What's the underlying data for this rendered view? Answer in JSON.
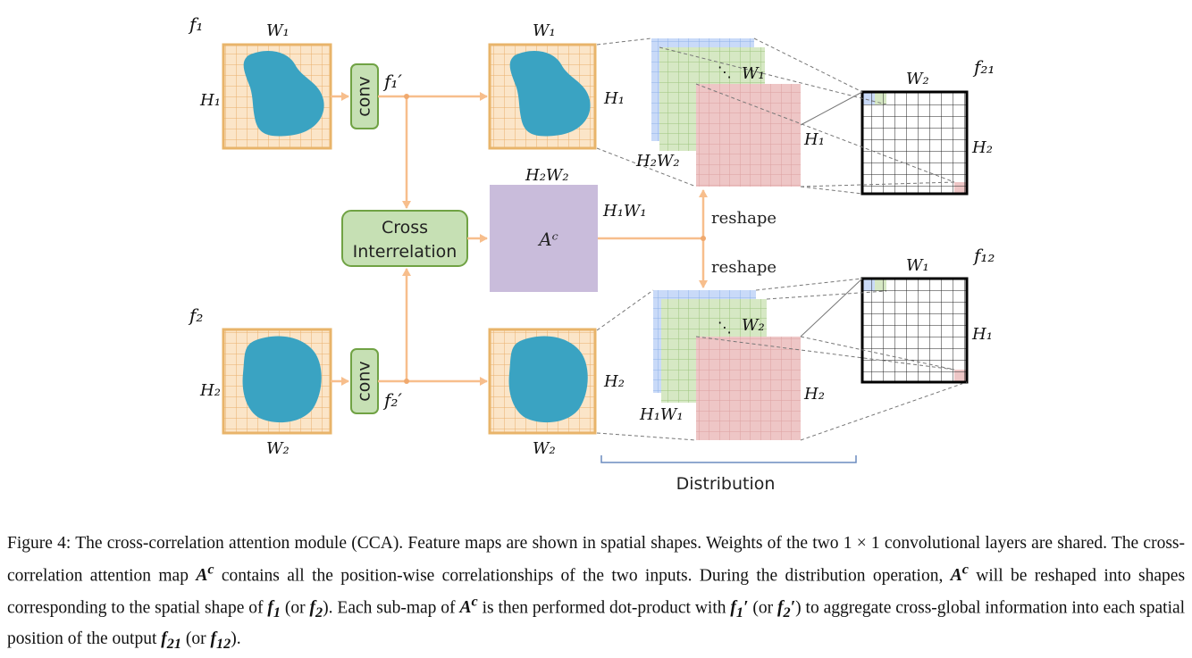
{
  "figure": {
    "f1_label": "f₁",
    "f2_label": "f₂",
    "f1p_label": "f₁′",
    "f2p_label": "f₂′",
    "f21_label": "f₂₁",
    "f12_label": "f₁₂",
    "W1": "W₁",
    "W2": "W₂",
    "H1": "H₁",
    "H2": "H₂",
    "H2W2": "H₂W₂",
    "H1W1": "H₁W₁",
    "conv_label": "conv",
    "cross_line1": "Cross",
    "cross_line2": "Interrelation",
    "ac_label": "Aᶜ",
    "reshape_label": "reshape",
    "distribution_label": "Distribution",
    "colors": {
      "feature_fill": "#fbe5c8",
      "feature_border": "#e8b46a",
      "blob": "#3aa3c2",
      "arrow": "#f7be8c",
      "conv_fill": "#c6e0b4",
      "conv_border": "#70a244",
      "ac_fill": "#c9bcdb",
      "blue_map": "#c9daf8",
      "green_map": "#d6e8c4",
      "red_map": "#eec6c6"
    }
  },
  "caption": {
    "fig_num": "Figure 4:",
    "s1": "The cross-correlation attention module (CCA). Feature maps are shown in spatial shapes. Weights of the two 1 × 1 convolutional layers are shared. The cross-correlation attention map",
    "ac": "A",
    "ac_sup": "c",
    "s2": "contains all the position-wise correlationships of the two inputs. During the distribution operation,",
    "s3": "will be reshaped into shapes corresponding to the spatial shape of",
    "f1": "f",
    "f1_sub": "1",
    "or1": "(or",
    "f2": "f",
    "f2_sub": "2",
    "s4": "). Each sub-map of",
    "s5": "is then performed dot-product with",
    "or2": "(or",
    "s6": ") to aggregate cross-global information into each spatial position of the output",
    "f21": "f",
    "f21_sub": "21",
    "or3": "(or",
    "f12": "f",
    "f12_sub": "12",
    "end": ")."
  }
}
